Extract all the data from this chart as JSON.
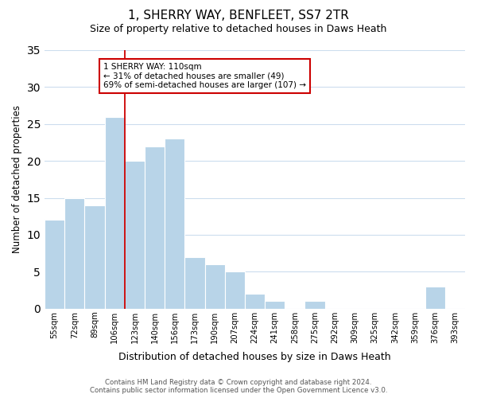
{
  "title": "1, SHERRY WAY, BENFLEET, SS7 2TR",
  "subtitle": "Size of property relative to detached houses in Daws Heath",
  "xlabel": "Distribution of detached houses by size in Daws Heath",
  "ylabel": "Number of detached properties",
  "bin_labels": [
    "55sqm",
    "72sqm",
    "89sqm",
    "106sqm",
    "123sqm",
    "140sqm",
    "156sqm",
    "173sqm",
    "190sqm",
    "207sqm",
    "224sqm",
    "241sqm",
    "258sqm",
    "275sqm",
    "292sqm",
    "309sqm",
    "325sqm",
    "342sqm",
    "359sqm",
    "376sqm",
    "393sqm"
  ],
  "bar_values": [
    12,
    15,
    14,
    26,
    20,
    22,
    23,
    7,
    6,
    5,
    2,
    1,
    0,
    1,
    0,
    0,
    0,
    0,
    0,
    3,
    0
  ],
  "bar_color": "#b8d4e8",
  "bar_edge_color": "#ffffff",
  "grid_color": "#ccddee",
  "vline_color": "#cc0000",
  "box_text_line1": "1 SHERRY WAY: 110sqm",
  "box_text_line2": "← 31% of detached houses are smaller (49)",
  "box_text_line3": "69% of semi-detached houses are larger (107) →",
  "box_edge_color": "#cc0000",
  "footnote1": "Contains HM Land Registry data © Crown copyright and database right 2024.",
  "footnote2": "Contains public sector information licensed under the Open Government Licence v3.0.",
  "ylim": [
    0,
    35
  ],
  "yticks": [
    0,
    5,
    10,
    15,
    20,
    25,
    30,
    35
  ],
  "vline_index": 3
}
